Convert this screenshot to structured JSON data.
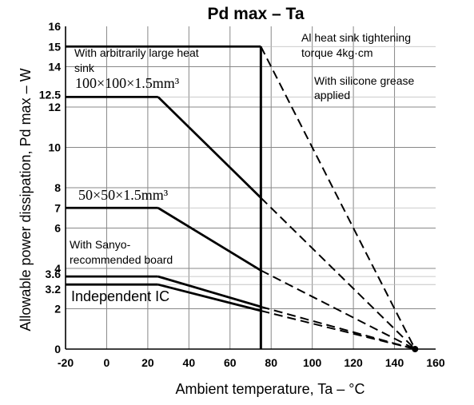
{
  "chart_data": {
    "type": "line",
    "title": "Pd max – Ta",
    "xlabel": "Ambient temperature, Ta – °C",
    "ylabel": "Allowable power dissipation, Pd max – W",
    "xlim": [
      -20,
      160
    ],
    "ylim": [
      0,
      16
    ],
    "xticks": [
      "-20",
      "0",
      "20",
      "40",
      "60",
      "80",
      "100",
      "120",
      "140",
      "160"
    ],
    "yticks": [
      "0",
      "2",
      "4",
      "6",
      "8",
      "10",
      "12",
      "14",
      "16"
    ],
    "extra_yticks": [
      {
        "label": "15",
        "value": 15
      },
      {
        "label": "12.5",
        "value": 12.5
      },
      {
        "label": "7",
        "value": 7
      },
      {
        "label": "3.6",
        "value": 3.6
      },
      {
        "label": "3.2",
        "value": 3.2
      }
    ],
    "grid": true,
    "series": [
      {
        "name": "With arbitrarily large heat sink",
        "x": [
          -20,
          75,
          150
        ],
        "y": [
          15,
          15,
          0
        ],
        "style": [
          "solid",
          "dashed"
        ]
      },
      {
        "name": "100×100×1.5mm³",
        "x": [
          -20,
          25,
          75,
          150
        ],
        "y": [
          12.5,
          12.5,
          7.5,
          0
        ],
        "style": [
          "solid",
          "solid",
          "dashed"
        ]
      },
      {
        "name": "50×50×1.5mm³",
        "x": [
          -20,
          25,
          75,
          150
        ],
        "y": [
          7,
          7,
          3.9,
          0
        ],
        "style": [
          "solid",
          "solid",
          "dashed"
        ]
      },
      {
        "name": "With Sanyo-recommended board",
        "x": [
          -20,
          25,
          75,
          150
        ],
        "y": [
          3.6,
          3.6,
          2.1,
          0
        ],
        "style": [
          "solid",
          "solid",
          "dashed"
        ]
      },
      {
        "name": "Independent IC",
        "x": [
          -20,
          25,
          75,
          150
        ],
        "y": [
          3.2,
          3.2,
          1.9,
          0
        ],
        "style": [
          "solid",
          "solid",
          "dashed"
        ]
      }
    ],
    "vertical_line": {
      "x": 75
    },
    "annotations": [
      {
        "text": "Al heat sink tightening torque 4kg·cm"
      },
      {
        "text": "With silicone grease applied"
      }
    ],
    "labels": {
      "large_heat_sink": [
        "With arbitrarily large heat",
        "sink"
      ],
      "board_100": "100×100×1.5mm³",
      "board_50": "50×50×1.5mm³",
      "sanyo": [
        "With Sanyo-",
        "recommended board"
      ],
      "independent": "Independent IC",
      "torque": [
        "Al heat sink tightening",
        "torque 4kg·cm"
      ],
      "grease": [
        "With silicone grease",
        "applied"
      ]
    }
  }
}
